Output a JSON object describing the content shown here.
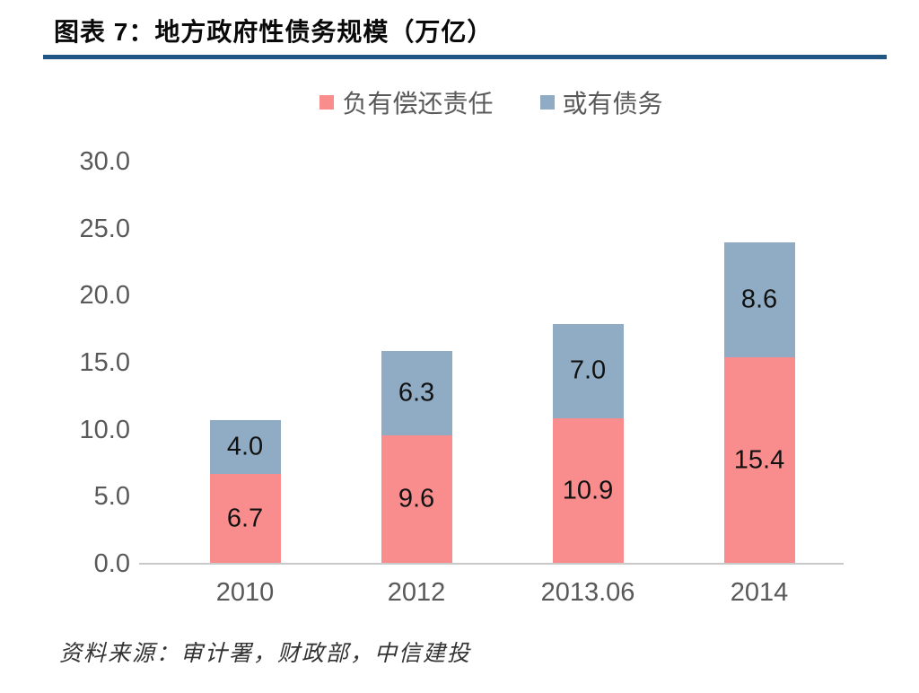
{
  "header": {
    "title": "图表 7：地方政府性债务规模（万亿）"
  },
  "footer": {
    "source": "资料来源：审计署，财政部，中信建投"
  },
  "colors": {
    "series_repay": "#F98D8D",
    "series_contingent": "#8FACC4",
    "title_rule": "#1F5683",
    "axis_line": "#C9C9C9",
    "axis_text": "#595959",
    "value_label": "#111111"
  },
  "chart_data": {
    "type": "bar",
    "stacked": true,
    "title": "地方政府性债务规模（万亿）",
    "categories": [
      "2010",
      "2012",
      "2013.06",
      "2014"
    ],
    "series": [
      {
        "name": "负有偿还责任",
        "color": "#F98D8D",
        "values": [
          6.7,
          9.6,
          10.9,
          15.4
        ]
      },
      {
        "name": "或有债务",
        "color": "#8FACC4",
        "values": [
          4.0,
          6.3,
          7.0,
          8.6
        ]
      }
    ],
    "y_tick_labels": [
      "0.0",
      "5.0",
      "10.0",
      "15.0",
      "20.0",
      "25.0",
      "30.0"
    ],
    "y_tick_values": [
      0,
      5,
      10,
      15,
      20,
      25,
      30
    ],
    "ylim": [
      0,
      30
    ],
    "grid": false,
    "legend_position": "top-center",
    "value_label_decimals": 1
  }
}
